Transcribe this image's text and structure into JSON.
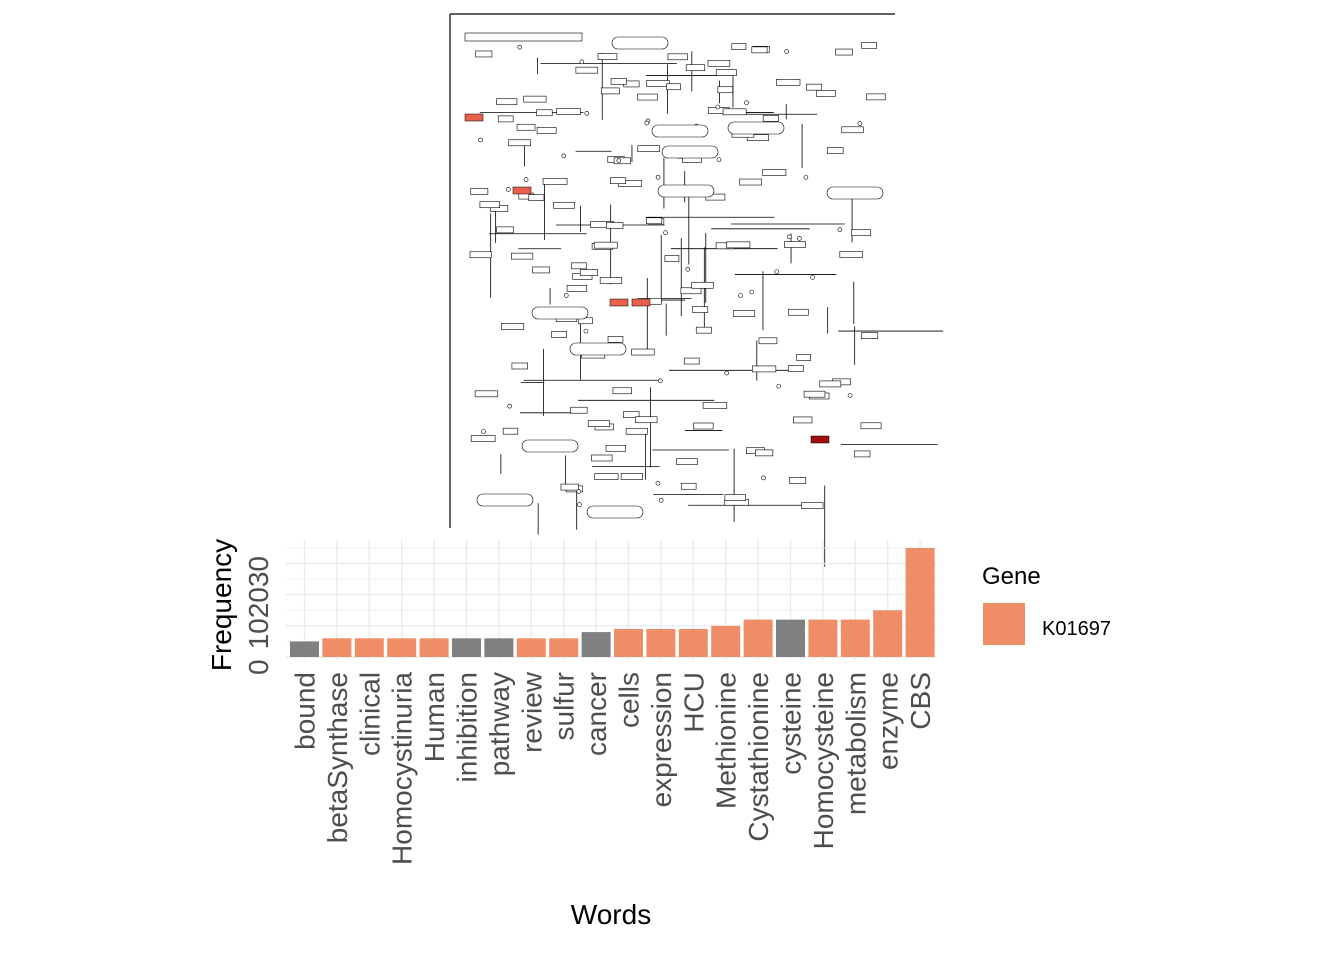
{
  "colors": {
    "highlight": "#EE8D66",
    "other": "#808080",
    "grid": "#EBEBEB",
    "text": "#4D4D4D",
    "title": "#000000",
    "pathway_red": "#E8604C",
    "pathway_darkred": "#A01010"
  },
  "pathway_image": {
    "type": "KEGG pathway map",
    "highlighted_gene": "K01697"
  },
  "chart_data": {
    "type": "bar",
    "xlabel": "Words",
    "ylabel": "Frequency",
    "y_ticks": [
      "0",
      "10",
      "20",
      "30"
    ],
    "ylim": [
      0,
      35
    ],
    "grid": true,
    "legend": {
      "title": "Gene",
      "placement": "right",
      "entries": [
        "K01697"
      ]
    },
    "categories": [
      "bound",
      "betaSynthase",
      "clinical",
      "Homocystinuria",
      "Human",
      "inhibition",
      "pathway",
      "review",
      "sulfur",
      "cancer",
      "cells",
      "expression",
      "HCU",
      "Methionine",
      "Cystathionine",
      "cysteine",
      "Homocysteine",
      "metabolism",
      "enzyme",
      "CBS"
    ],
    "values": [
      5,
      6,
      6,
      6,
      6,
      6,
      6,
      6,
      6,
      8,
      9,
      9,
      9,
      10,
      12,
      12,
      12,
      12,
      15,
      35
    ],
    "gene_hit": [
      false,
      true,
      true,
      true,
      true,
      false,
      false,
      true,
      true,
      false,
      true,
      true,
      true,
      true,
      true,
      false,
      true,
      true,
      true,
      true
    ]
  }
}
